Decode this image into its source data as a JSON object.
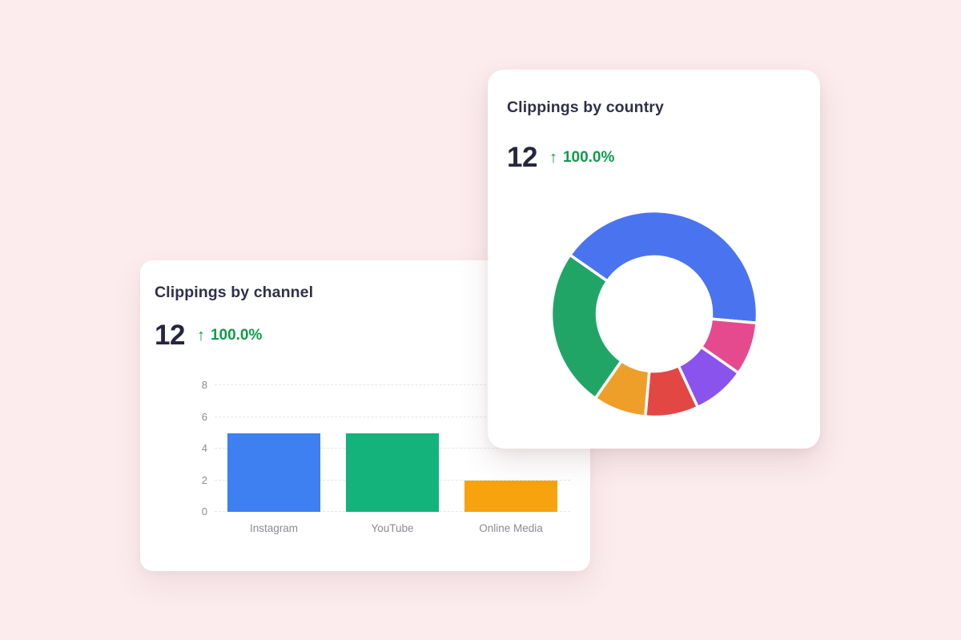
{
  "theme": {
    "background": "#fcecee",
    "card_background": "#ffffff",
    "title_color": "#30304b",
    "metric_color": "#26263e",
    "trend_green": "#0e9c4a",
    "axis_label_color": "#8b8b92",
    "gridline_color": "#e7e5e7"
  },
  "cards": {
    "country": {
      "title": "Clippings by country",
      "metric_value": "12",
      "trend_arrow": "↑",
      "trend_value": "100.0%"
    },
    "channel": {
      "title": "Clippings by channel",
      "metric_value": "12",
      "trend_arrow": "↑",
      "trend_value": "100.0%"
    }
  },
  "chart_data": [
    {
      "type": "pie",
      "subtype": "donut",
      "card": "Clippings by country",
      "total": 12,
      "start_angle_deg": 305,
      "direction": "clockwise",
      "inner_radius_ratio": 0.55,
      "legend": "none",
      "segments": [
        {
          "value": 5,
          "color": "#4a74ef"
        },
        {
          "value": 1,
          "color": "#e64a8e"
        },
        {
          "value": 1,
          "color": "#8b53ee"
        },
        {
          "value": 1,
          "color": "#e34744"
        },
        {
          "value": 1,
          "color": "#ee9f2a"
        },
        {
          "value": 3,
          "color": "#21a567"
        }
      ]
    },
    {
      "type": "bar",
      "card": "Clippings by channel",
      "categories": [
        "Instagram",
        "YouTube",
        "Online Media"
      ],
      "values": [
        5,
        5,
        2
      ],
      "colors": [
        "#3e7ff2",
        "#14b37b",
        "#f6a30f"
      ],
      "yticks": [
        0,
        2,
        4,
        6,
        8
      ],
      "ylim": [
        0,
        8
      ],
      "grid": "dashed-horizontal"
    }
  ]
}
